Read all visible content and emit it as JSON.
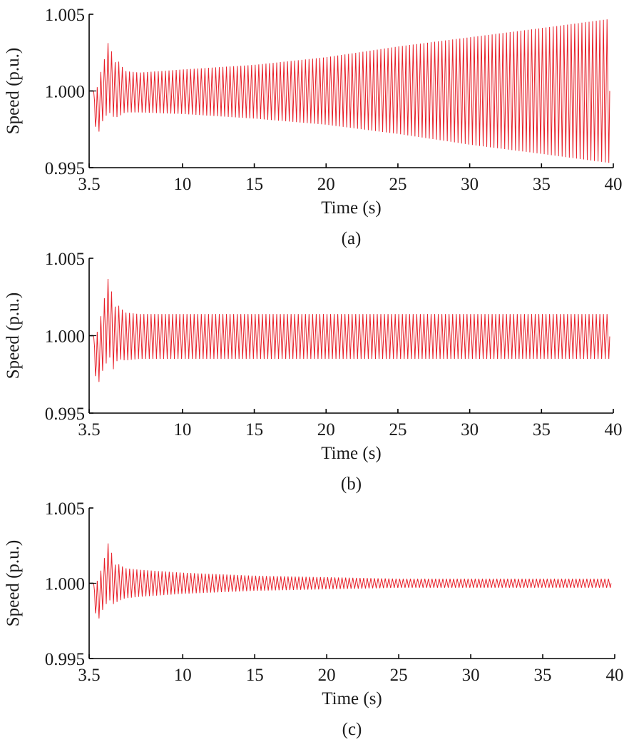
{
  "chart_data": [
    {
      "type": "line",
      "caption": "(a)",
      "xlabel": "Time (s)",
      "ylabel": "Speed (p.u.)",
      "xlim": [
        3.5,
        40
      ],
      "ylim": [
        0.995,
        1.005
      ],
      "xticks": [
        3.5,
        10,
        15,
        20,
        25,
        30,
        35,
        40
      ],
      "xtick_labels": [
        "3.5",
        "10",
        "15",
        "20",
        "25",
        "30",
        "35",
        "40"
      ],
      "yticks": [
        0.995,
        1.0,
        1.005
      ],
      "ytick_labels": [
        "0.995",
        "1.000",
        "1.005"
      ],
      "grid": false,
      "series": [
        {
          "color": "#e8222b",
          "x": [
            3.5,
            3.8,
            4.0,
            4.3,
            4.6,
            4.9,
            5.2,
            5.5,
            6.0,
            7.0,
            10,
            15,
            20,
            25,
            30,
            35,
            39.8
          ],
          "y_max": [
            1.0,
            1.0,
            1.0,
            1.0012,
            1.0022,
            1.0035,
            1.0018,
            1.002,
            1.0013,
            1.0012,
            1.0014,
            1.0017,
            1.0022,
            1.0029,
            1.0035,
            1.0041,
            1.0047
          ],
          "y_min": [
            1.0,
            1.0,
            0.9966,
            0.9978,
            0.9983,
            0.9986,
            0.9983,
            0.9983,
            0.9986,
            0.9986,
            0.9985,
            0.9982,
            0.9978,
            0.9972,
            0.9965,
            0.9959,
            0.9953
          ],
          "oscillation_period_s": 0.25,
          "trend": "growing oscillation"
        }
      ]
    },
    {
      "type": "line",
      "caption": "(b)",
      "xlabel": "Time (s)",
      "ylabel": "Speed (p.u.)",
      "xlim": [
        3.5,
        40
      ],
      "ylim": [
        0.995,
        1.005
      ],
      "xticks": [
        3.5,
        10,
        15,
        20,
        25,
        30,
        35,
        40
      ],
      "xtick_labels": [
        "3.5",
        "10",
        "15",
        "20",
        "25",
        "30",
        "35",
        "40"
      ],
      "yticks": [
        0.995,
        1.0,
        1.005
      ],
      "ytick_labels": [
        "0.995",
        "1.000",
        "1.005"
      ],
      "grid": false,
      "series": [
        {
          "color": "#e8222b",
          "x": [
            3.5,
            3.8,
            4.0,
            4.3,
            4.6,
            4.9,
            5.2,
            5.5,
            6.0,
            7.0,
            10,
            15,
            20,
            25,
            30,
            35,
            39.8
          ],
          "y_max": [
            1.0,
            1.0,
            1.0,
            1.0012,
            1.0026,
            1.0041,
            1.0018,
            1.002,
            1.0015,
            1.0014,
            1.0014,
            1.0014,
            1.0014,
            1.0014,
            1.0014,
            1.0014,
            1.0014
          ],
          "y_min": [
            1.0,
            1.0,
            0.9962,
            0.9975,
            0.998,
            0.9987,
            0.9978,
            0.9985,
            0.9984,
            0.9985,
            0.9985,
            0.9985,
            0.9985,
            0.9985,
            0.9985,
            0.9985,
            0.9985
          ],
          "oscillation_period_s": 0.25,
          "trend": "sustained oscillation"
        }
      ]
    },
    {
      "type": "line",
      "caption": "(c)",
      "xlabel": "Time (s)",
      "ylabel": "Speed (p.u.)",
      "xlim": [
        3.5,
        40
      ],
      "ylim": [
        0.995,
        1.005
      ],
      "xticks": [
        3.5,
        10,
        15,
        20,
        25,
        30,
        35,
        40
      ],
      "xtick_labels": [
        "3.5",
        "10",
        "15",
        "20",
        "25",
        "30",
        "35",
        "40"
      ],
      "yticks": [
        0.995,
        1.0,
        1.005
      ],
      "ytick_labels": [
        "0.995",
        "1.000",
        "1.005"
      ],
      "grid": false,
      "series": [
        {
          "color": "#e8222b",
          "x": [
            3.5,
            3.8,
            4.0,
            4.3,
            4.6,
            4.9,
            5.2,
            5.5,
            6.0,
            7.0,
            10,
            15,
            20,
            25,
            30,
            35,
            39.8
          ],
          "y_max": [
            1.0,
            1.0,
            1.0,
            1.0008,
            1.0018,
            1.003,
            1.0012,
            1.0013,
            1.001,
            1.0009,
            1.0007,
            1.0005,
            1.0004,
            1.0003,
            1.0003,
            1.0003,
            1.0003
          ],
          "y_min": [
            1.0,
            1.0,
            0.9971,
            0.998,
            0.9985,
            0.9989,
            0.9986,
            0.9988,
            0.999,
            0.9991,
            0.9993,
            0.9995,
            0.9996,
            0.9997,
            0.9997,
            0.9997,
            0.9997
          ],
          "oscillation_period_s": 0.25,
          "trend": "damped oscillation"
        }
      ]
    }
  ]
}
